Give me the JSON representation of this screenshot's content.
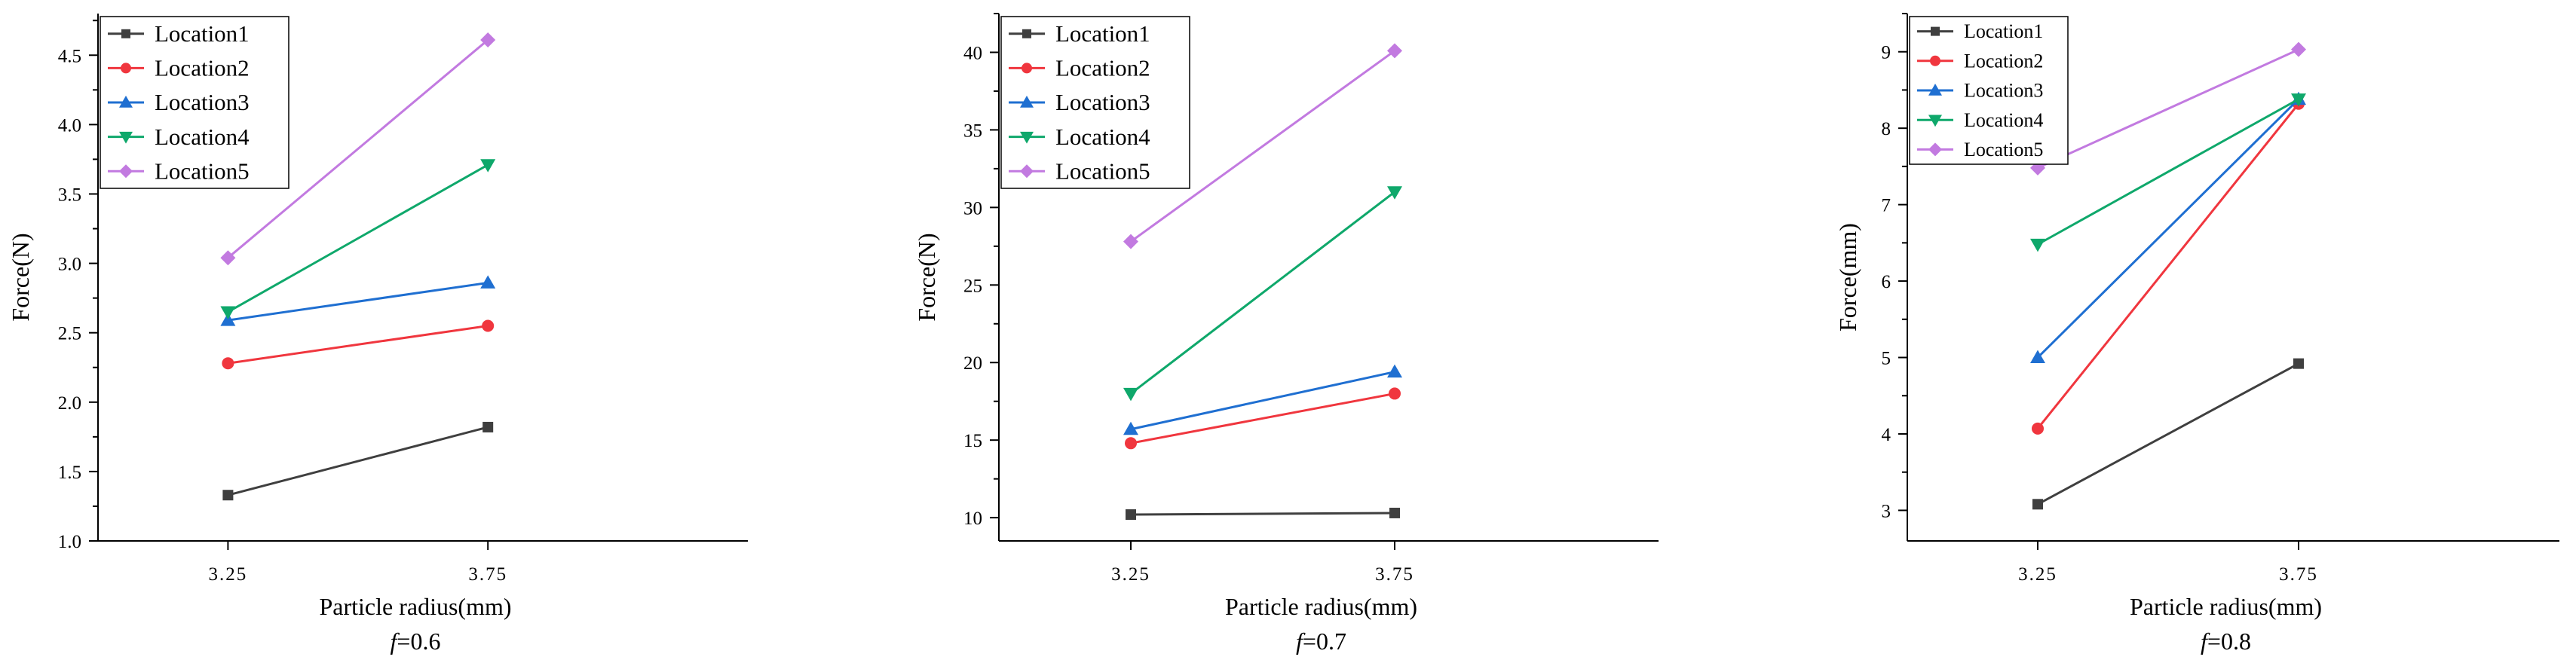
{
  "chart_data": [
    {
      "type": "line",
      "x": [
        3.25,
        3.75
      ],
      "tick_labels": [
        "3.25",
        "3.75"
      ],
      "xlabel": "Particle radius(mm)",
      "ylabel": "Force(N)",
      "caption_italic": "f",
      "caption_rest": "=0.6",
      "ylim": [
        1.0,
        4.8
      ],
      "xlim": [
        3.0,
        4.25
      ],
      "yticks": [
        1.0,
        1.5,
        2.0,
        2.5,
        3.0,
        3.5,
        4.0,
        4.5
      ],
      "ytick_labels": [
        "1.0",
        "1.5",
        "2.0",
        "2.5",
        "3.0",
        "3.5",
        "4.0",
        "4.5"
      ],
      "legend_position": "top-left",
      "series": [
        {
          "name": "Location1",
          "values": [
            1.33,
            1.82
          ],
          "color": "#3f3f3f",
          "marker": "square"
        },
        {
          "name": "Location2",
          "values": [
            2.28,
            2.55
          ],
          "color": "#f0363e",
          "marker": "circle"
        },
        {
          "name": "Location3",
          "values": [
            2.59,
            2.86
          ],
          "color": "#1f6fd1",
          "marker": "triangle-up"
        },
        {
          "name": "Location4",
          "values": [
            2.65,
            3.71
          ],
          "color": "#0fa86b",
          "marker": "triangle-down"
        },
        {
          "name": "Location5",
          "values": [
            3.04,
            4.61
          ],
          "color": "#c27ae0",
          "marker": "diamond"
        }
      ]
    },
    {
      "type": "line",
      "x": [
        3.25,
        3.75
      ],
      "tick_labels": [
        "3.25",
        "3.75"
      ],
      "xlabel": "Particle radius(mm)",
      "ylabel": "Force(N)",
      "caption_italic": "f",
      "caption_rest": "=0.7",
      "ylim": [
        8.5,
        42.5
      ],
      "xlim": [
        3.0,
        4.25
      ],
      "yticks": [
        10,
        15,
        20,
        25,
        30,
        35,
        40
      ],
      "ytick_labels": [
        "10",
        "15",
        "20",
        "25",
        "30",
        "35",
        "40"
      ],
      "legend_position": "top-left",
      "series": [
        {
          "name": "Location1",
          "values": [
            10.2,
            10.3
          ],
          "color": "#3f3f3f",
          "marker": "square"
        },
        {
          "name": "Location2",
          "values": [
            14.8,
            18.0
          ],
          "color": "#f0363e",
          "marker": "circle"
        },
        {
          "name": "Location3",
          "values": [
            15.7,
            19.4
          ],
          "color": "#1f6fd1",
          "marker": "triangle-up"
        },
        {
          "name": "Location4",
          "values": [
            18.0,
            31.0
          ],
          "color": "#0fa86b",
          "marker": "triangle-down"
        },
        {
          "name": "Location5",
          "values": [
            27.8,
            40.1
          ],
          "color": "#c27ae0",
          "marker": "diamond"
        }
      ]
    },
    {
      "type": "line",
      "x": [
        3.25,
        3.75
      ],
      "tick_labels": [
        "3.25",
        "3.75"
      ],
      "xlabel": "Particle radius(mm)",
      "ylabel": "Force(mm)",
      "caption_italic": "f",
      "caption_rest": "=0.8",
      "ylim": [
        2.6,
        9.5
      ],
      "xlim": [
        3.0,
        4.25
      ],
      "yticks": [
        3,
        4,
        5,
        6,
        7,
        8,
        9
      ],
      "ytick_labels": [
        "3",
        "4",
        "5",
        "6",
        "7",
        "8",
        "9"
      ],
      "legend_position": "top-left",
      "series": [
        {
          "name": "Location1",
          "values": [
            3.08,
            4.92
          ],
          "color": "#3f3f3f",
          "marker": "square"
        },
        {
          "name": "Location2",
          "values": [
            4.07,
            8.32
          ],
          "color": "#f0363e",
          "marker": "circle"
        },
        {
          "name": "Location3",
          "values": [
            5.0,
            8.38
          ],
          "color": "#1f6fd1",
          "marker": "triangle-up"
        },
        {
          "name": "Location4",
          "values": [
            6.48,
            8.38
          ],
          "color": "#0fa86b",
          "marker": "triangle-down"
        },
        {
          "name": "Location5",
          "values": [
            7.48,
            9.03
          ],
          "color": "#c27ae0",
          "marker": "diamond"
        }
      ]
    }
  ]
}
